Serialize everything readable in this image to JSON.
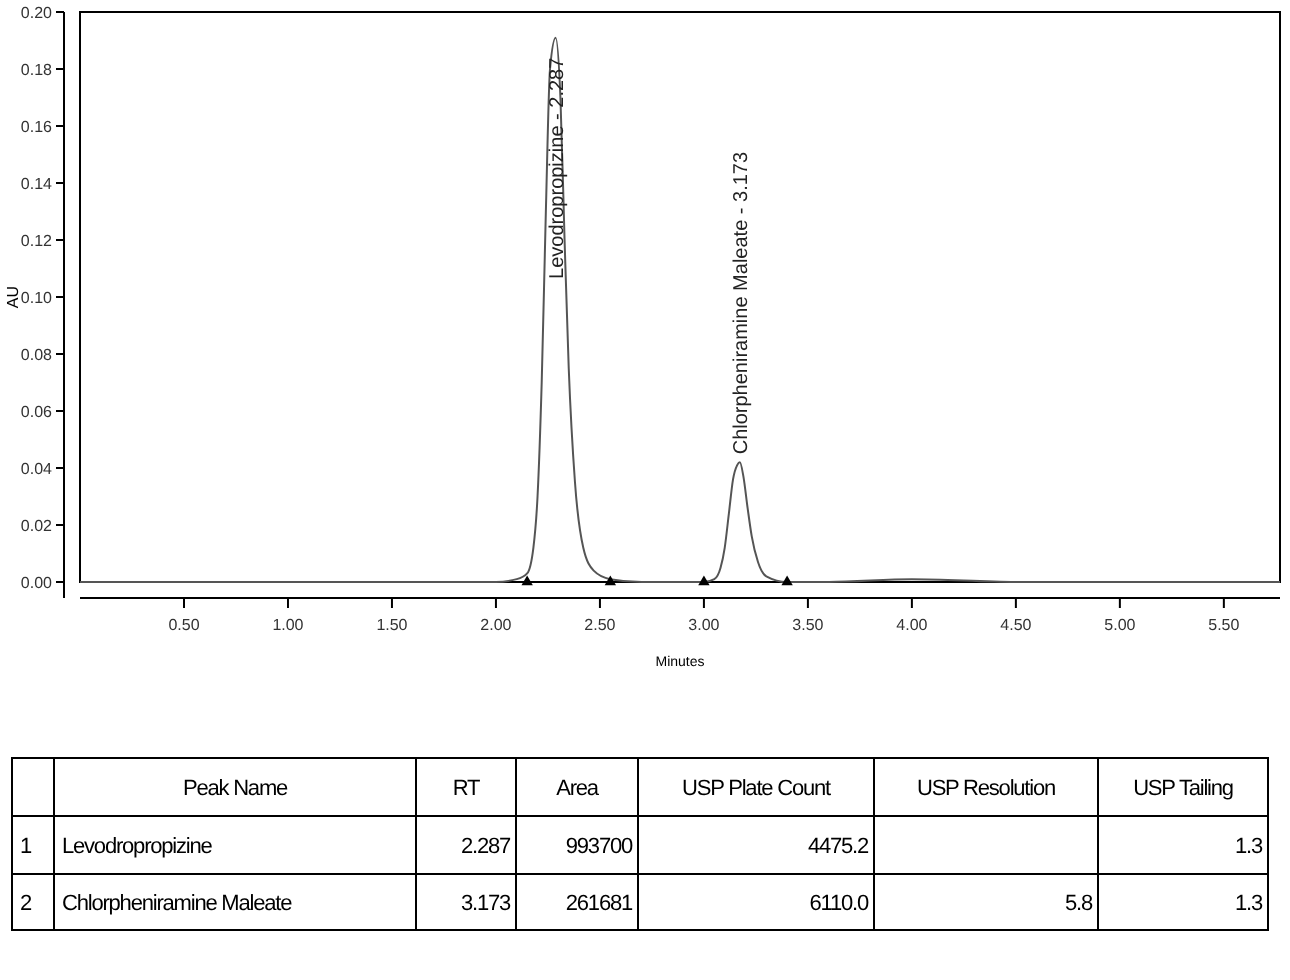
{
  "chart_data": [
    {
      "type": "line",
      "xlabel": "Minutes",
      "ylabel": "AU",
      "xlim": [
        0,
        5.77
      ],
      "ylim": [
        0,
        0.2
      ],
      "xticks": [
        {
          "value": 0.5,
          "label": "0.50"
        },
        {
          "value": 1,
          "label": "1.00"
        },
        {
          "value": 1.5,
          "label": "1.50"
        },
        {
          "value": 2,
          "label": "2.00"
        },
        {
          "value": 2.5,
          "label": "2.50"
        },
        {
          "value": 3,
          "label": "3.00"
        },
        {
          "value": 3.5,
          "label": "3.50"
        },
        {
          "value": 4,
          "label": "4.00"
        },
        {
          "value": 4.5,
          "label": "4.50"
        },
        {
          "value": 5,
          "label": "5.00"
        },
        {
          "value": 5.5,
          "label": "5.50"
        }
      ],
      "yticks": [
        {
          "value": 0,
          "label": "0.00"
        },
        {
          "value": 0.02,
          "label": "0.02"
        },
        {
          "value": 0.04,
          "label": "0.04"
        },
        {
          "value": 0.06,
          "label": "0.06"
        },
        {
          "value": 0.08,
          "label": "0.08"
        },
        {
          "value": 0.1,
          "label": "0.10"
        },
        {
          "value": 0.12,
          "label": "0.12"
        },
        {
          "value": 0.14,
          "label": "0.14"
        },
        {
          "value": 0.16,
          "label": "0.16"
        },
        {
          "value": 0.18,
          "label": "0.18"
        },
        {
          "value": 0.2,
          "label": "0.20"
        }
      ],
      "grid": false,
      "series": [
        {
          "type": "line",
          "color": "#555555",
          "x": [
            0,
            0.5,
            1,
            1.5,
            2,
            2.1,
            2.15,
            2.18,
            2.2,
            2.22,
            2.24,
            2.26,
            2.287,
            2.31,
            2.33,
            2.35,
            2.38,
            2.42,
            2.47,
            2.55,
            2.7,
            3,
            3.05,
            3.08,
            3.1,
            3.12,
            3.14,
            3.16,
            3.173,
            3.19,
            3.21,
            3.23,
            3.26,
            3.3,
            3.4,
            3.6,
            4,
            4.5,
            5,
            5.5,
            5.77
          ],
          "values": [
            0,
            0,
            0,
            0,
            0,
            0.001,
            0.003,
            0.012,
            0.03,
            0.07,
            0.13,
            0.18,
            0.191,
            0.17,
            0.12,
            0.075,
            0.035,
            0.012,
            0.004,
            0.001,
            0,
            0,
            0.001,
            0.005,
            0.012,
            0.024,
            0.036,
            0.041,
            0.042,
            0.037,
            0.026,
            0.016,
            0.007,
            0.002,
            0,
            0,
            0.001,
            0,
            0,
            0,
            0
          ]
        },
        {
          "type": "scatter",
          "marker": "triangle",
          "color": "#000000",
          "x": [
            2.15,
            2.55,
            3,
            3.4
          ],
          "values": [
            0,
            0,
            0,
            0
          ]
        }
      ],
      "annotations": [
        {
          "text": "Levodropropizine - 2.287",
          "x": 2.287,
          "y": 0.191
        },
        {
          "text": "Chlorpheniramine Maleate - 3.173",
          "x": 3.173,
          "y": 0.042
        }
      ]
    },
    {
      "type": "other",
      "categories": [
        null,
        "Peak Name",
        "RT",
        "Area",
        "USP Plate Count",
        "USP Resolution",
        "USP Tailing"
      ],
      "annotations": [
        "1",
        "Levodropropizine",
        "2.287",
        "993700",
        "4475.2",
        null,
        "1.3",
        "2",
        "Chlorpheniramine Maleate",
        "3.173",
        "261681",
        "6110.0",
        "5.8",
        "1.3"
      ]
    }
  ]
}
